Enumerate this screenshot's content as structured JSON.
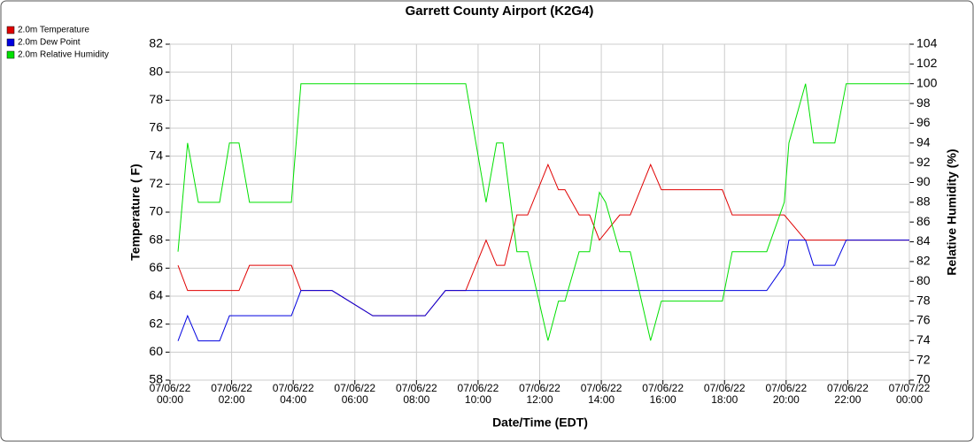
{
  "chart_data": {
    "type": "line",
    "title": "Garrett County Airport (K2G4)",
    "xlabel": "Date/Time (EDT)",
    "ylabel": "Temperature ( F)",
    "y2label": "Relative Humidity (%)",
    "xlim": [
      0,
      24
    ],
    "xticks": [
      {
        "value": 0,
        "label": "07/06/22 00:00"
      },
      {
        "value": 2,
        "label": "07/06/22 02:00"
      },
      {
        "value": 4,
        "label": "07/06/22 04:00"
      },
      {
        "value": 6,
        "label": "07/06/22 06:00"
      },
      {
        "value": 8,
        "label": "07/06/22 08:00"
      },
      {
        "value": 10,
        "label": "07/06/22 10:00"
      },
      {
        "value": 12,
        "label": "07/06/22 12:00"
      },
      {
        "value": 14,
        "label": "07/06/22 14:00"
      },
      {
        "value": 16,
        "label": "07/06/22 16:00"
      },
      {
        "value": 18,
        "label": "07/06/22 18:00"
      },
      {
        "value": 20,
        "label": "07/06/22 20:00"
      },
      {
        "value": 22,
        "label": "07/06/22 22:00"
      },
      {
        "value": 24,
        "label": "07/07/22 00:00"
      }
    ],
    "ylim": [
      58,
      82
    ],
    "yticks": [
      58,
      60,
      62,
      64,
      66,
      68,
      70,
      72,
      74,
      76,
      78,
      80,
      82
    ],
    "y2lim": [
      70,
      104
    ],
    "y2ticks": [
      70,
      72,
      74,
      76,
      78,
      80,
      82,
      84,
      86,
      88,
      90,
      92,
      94,
      96,
      98,
      100,
      102,
      104
    ],
    "grid": true,
    "legend": "top-left",
    "series": [
      {
        "name": "2.0m Temperature",
        "color": "#e00000",
        "x": [
          0.26,
          0.57,
          1.93,
          2.24,
          2.58,
          3.94,
          4.25,
          5.26,
          6.58,
          8.28,
          8.94,
          9.6,
          10.26,
          10.6,
          10.86,
          11.26,
          11.61,
          12.27,
          12.61,
          12.82,
          13.28,
          13.62,
          13.94,
          14.6,
          14.94,
          15.6,
          15.95,
          17.93,
          18.25,
          19.94,
          20.63,
          24
        ],
        "values": [
          66.2,
          64.4,
          64.4,
          64.4,
          66.2,
          66.2,
          64.4,
          64.4,
          62.6,
          62.6,
          64.4,
          64.4,
          68,
          66.2,
          66.2,
          69.8,
          69.8,
          73.4,
          71.6,
          71.6,
          69.8,
          69.8,
          68,
          69.8,
          69.8,
          73.4,
          71.6,
          71.6,
          69.8,
          69.8,
          68,
          68
        ]
      },
      {
        "name": "2.0m Dew Point",
        "color": "#0000e0",
        "x": [
          0.26,
          0.57,
          0.92,
          1.61,
          1.93,
          3.94,
          4.25,
          5.26,
          6.58,
          8.28,
          8.94,
          9.6,
          19.37,
          19.94,
          20.09,
          20.63,
          20.89,
          21.58,
          21.95,
          24
        ],
        "values": [
          60.8,
          62.6,
          60.8,
          60.8,
          62.6,
          62.6,
          64.4,
          64.4,
          62.6,
          62.6,
          64.4,
          64.4,
          64.4,
          66.2,
          68,
          68,
          66.2,
          66.2,
          68,
          68
        ]
      },
      {
        "name": "2.0m Relative Humidity",
        "color": "#00e000",
        "axis": "y2",
        "x": [
          0.26,
          0.57,
          0.92,
          1.61,
          1.93,
          2.24,
          2.58,
          3.94,
          4.25,
          9.6,
          10.26,
          10.6,
          10.81,
          11.26,
          11.61,
          12.27,
          12.61,
          12.82,
          13.28,
          13.62,
          13.94,
          14.14,
          14.6,
          14.94,
          15.6,
          15.95,
          17.93,
          18.25,
          19.37,
          19.94,
          20.09,
          20.63,
          20.89,
          21.58,
          21.95,
          24
        ],
        "values": [
          83,
          94,
          88,
          88,
          94,
          94,
          88,
          88,
          100,
          100,
          88,
          94,
          94,
          83,
          83,
          74,
          78,
          78,
          83,
          83,
          89,
          88,
          83,
          83,
          74,
          78,
          78,
          83,
          83,
          88,
          94,
          100,
          94,
          94,
          100,
          100
        ]
      }
    ]
  }
}
